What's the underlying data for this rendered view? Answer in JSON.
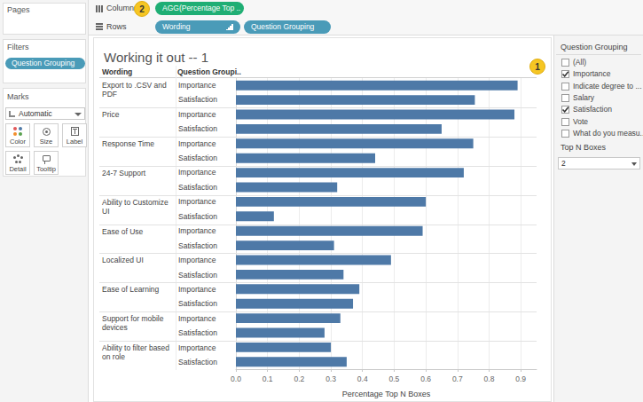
{
  "screen": {
    "pages_label": "Pages",
    "filters_label": "Filters",
    "filter_pill": "Question Grouping",
    "marks_label": "Marks",
    "mark_type": "Automatic",
    "mark_buttons": [
      "Color",
      "Size",
      "Label",
      "Detail",
      "Tooltip"
    ],
    "columns_label": "Columns",
    "columns_pills": [
      "AGG(Percentage Top .."
    ],
    "rows_label": "Rows",
    "rows_pills": [
      "Wording",
      "Question Grouping"
    ],
    "callouts": [
      1,
      2
    ],
    "header": {
      "wording": "Wording",
      "grouping": "Question Groupi.."
    },
    "filter_card": {
      "title": "Question Grouping",
      "items": [
        {
          "label": "(All)",
          "checked": false
        },
        {
          "label": "Importance",
          "checked": true
        },
        {
          "label": "Indicate degree to ...",
          "checked": false
        },
        {
          "label": "Salary",
          "checked": false
        },
        {
          "label": "Satisfaction",
          "checked": true
        },
        {
          "label": "Vote",
          "checked": false
        },
        {
          "label": "What do you measu...",
          "checked": false
        }
      ]
    },
    "parameter_card": {
      "title": "Top N Boxes",
      "value": 2
    }
  },
  "chart_data": {
    "type": "bar",
    "orientation": "horizontal",
    "title": "Working it out -- 1",
    "x_label": "Percentage Top N Boxes",
    "categories": [
      "Export to .CSV and PDF",
      "Price",
      "Response Time",
      "24-7 Support",
      "Ability to Customize UI",
      "Ease of Use",
      "Localized UI",
      "Ease of Learning",
      "Support for mobile devices",
      "Ability to filter based on role"
    ],
    "series": [
      {
        "name": "Importance",
        "color": "#4e79a7",
        "values": [
          0.89,
          0.88,
          0.75,
          0.72,
          0.6,
          0.59,
          0.49,
          0.39,
          0.33,
          0.3
        ]
      },
      {
        "name": "Satisfaction",
        "color": "#4e79a7",
        "values": [
          0.755,
          0.65,
          0.44,
          0.32,
          0.12,
          0.31,
          0.34,
          0.37,
          0.28,
          0.35
        ]
      }
    ],
    "xlim": [
      0,
      0.95
    ],
    "xticks": [
      {
        "value": 0,
        "label": "0.0"
      },
      0.1,
      0.2,
      0.3,
      0.4,
      0.5,
      0.6,
      0.7,
      0.8,
      0.9
    ],
    "grid": true
  }
}
